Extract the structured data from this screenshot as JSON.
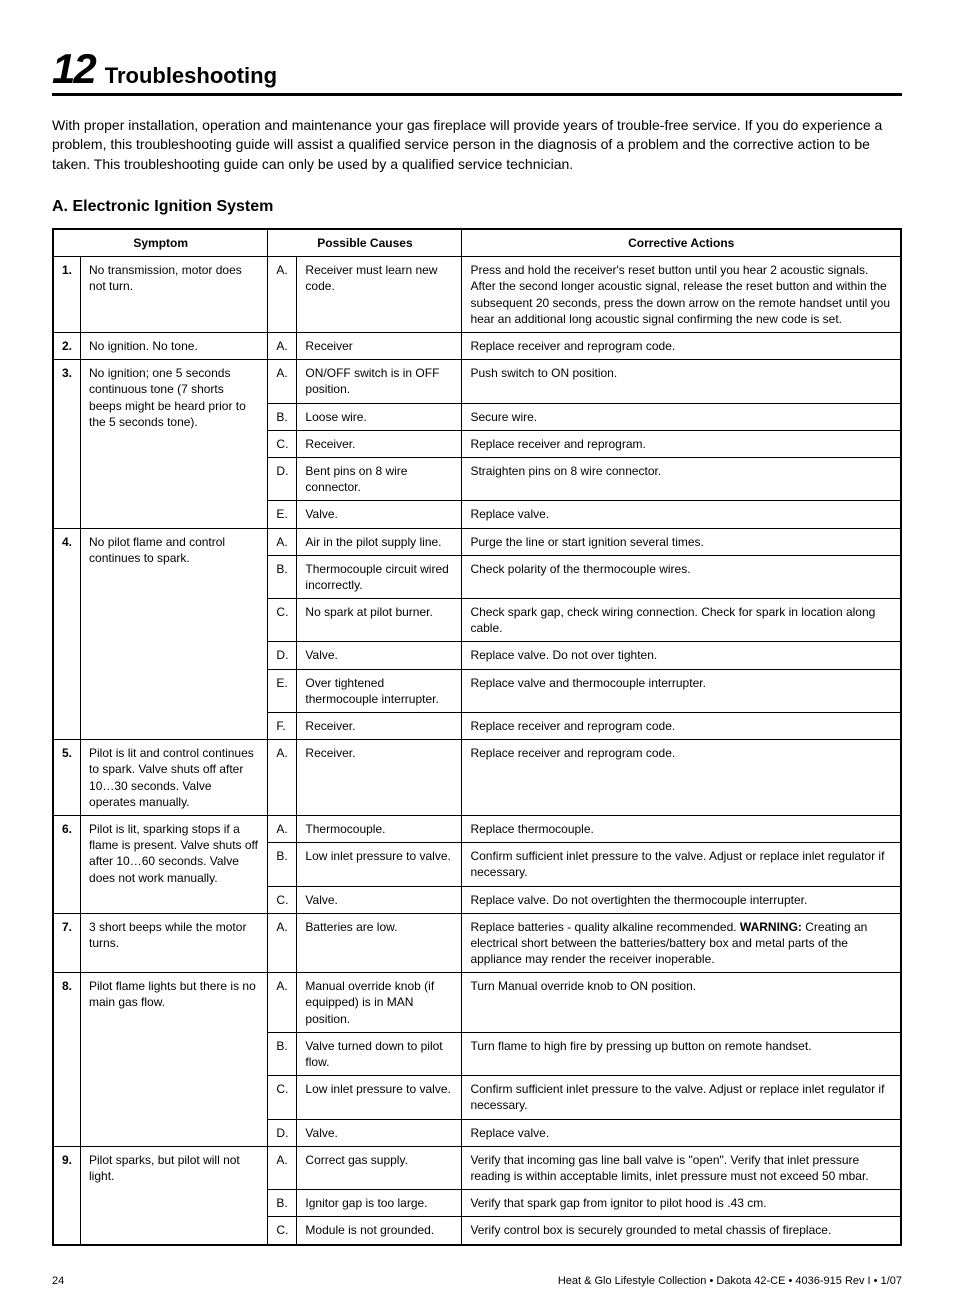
{
  "chapter": {
    "number": "12",
    "title": "Troubleshooting"
  },
  "intro": "With proper installation, operation and maintenance your gas fireplace will provide years of trouble-free service. If you do experience a problem, this troubleshooting guide will assist a qualified service person in the diagnosis of a problem and the corrective action to be taken. This troubleshooting guide can only be used by a qualified service technician.",
  "section_heading": "A. Electronic Ignition System",
  "table": {
    "headers": {
      "symptom": "Symptom",
      "causes": "Possible Causes",
      "actions": "Corrective Actions"
    },
    "rows": [
      {
        "num": "1.",
        "symptom": "No transmission, motor does not turn.",
        "causes": [
          {
            "letter": "A.",
            "cause": "Receiver must learn new code.",
            "action": "Press and hold the receiver's reset button until you hear 2 acoustic signals. After the second longer acoustic signal, release the reset button and within the subsequent 20 seconds, press the down arrow on the remote handset until you hear an additional long acoustic signal confirming the new code is set."
          }
        ]
      },
      {
        "num": "2.",
        "symptom": "No ignition. No tone.",
        "causes": [
          {
            "letter": "A.",
            "cause": "Receiver",
            "action": "Replace receiver and reprogram code."
          }
        ]
      },
      {
        "num": "3.",
        "symptom": "No ignition; one 5 seconds continuous tone (7 shorts beeps might be heard prior to the 5 seconds tone).",
        "causes": [
          {
            "letter": "A.",
            "cause": "ON/OFF switch is in OFF position.",
            "action": "Push switch to ON position."
          },
          {
            "letter": "B.",
            "cause": "Loose wire.",
            "action": "Secure wire."
          },
          {
            "letter": "C.",
            "cause": "Receiver.",
            "action": "Replace receiver and reprogram."
          },
          {
            "letter": "D.",
            "cause": "Bent pins on 8 wire connector.",
            "action": "Straighten pins on 8 wire connector."
          },
          {
            "letter": "E.",
            "cause": "Valve.",
            "action": "Replace valve."
          }
        ]
      },
      {
        "num": "4.",
        "symptom": "No pilot flame and control continues to spark.",
        "causes": [
          {
            "letter": "A.",
            "cause": "Air in the pilot supply line.",
            "action": "Purge the line or start ignition several times."
          },
          {
            "letter": "B.",
            "cause": "Thermocouple circuit wired incorrectly.",
            "action": "Check polarity of the thermocouple wires."
          },
          {
            "letter": "C.",
            "cause": "No spark at pilot burner.",
            "action": " Check spark gap, check wiring connection. Check for spark in location along cable."
          },
          {
            "letter": "D.",
            "cause": "Valve.",
            "action": "Replace valve. Do not over tighten."
          },
          {
            "letter": "E.",
            "cause": "Over tightened thermocouple interrupter.",
            "action": "Replace valve and thermocouple interrupter."
          },
          {
            "letter": "F.",
            "cause": "Receiver.",
            "action": "Replace receiver and reprogram code."
          }
        ]
      },
      {
        "num": "5.",
        "symptom": "Pilot is lit and control continues to spark. Valve shuts off after 10…30 seconds. Valve operates manually.",
        "causes": [
          {
            "letter": "A.",
            "cause": "Receiver.",
            "action": "Replace receiver and reprogram code."
          }
        ]
      },
      {
        "num": "6.",
        "symptom": "Pilot is lit, sparking stops if a flame is present. Valve shuts off after 10…60 seconds. Valve does not work manually.",
        "causes": [
          {
            "letter": "A.",
            "cause": "Thermocouple.",
            "action": "Replace thermocouple."
          },
          {
            "letter": "B.",
            "cause": "Low inlet pressure to valve.",
            "action": "Confirm sufficient inlet pressure to the valve. Adjust or replace inlet regulator if necessary."
          },
          {
            "letter": "C.",
            "cause": "Valve.",
            "action": "Replace valve. Do not overtighten the thermocouple interrupter."
          }
        ]
      },
      {
        "num": "7.",
        "symptom": "3 short beeps while the motor turns.",
        "causes": [
          {
            "letter": "A.",
            "cause": "Batteries are low.",
            "action_pre": "Replace batteries - quality alkaline recommended. ",
            "action_bold": "WARNING:",
            "action_post": " Creating an electrical short between the batteries/battery box and metal parts of the appliance may render the receiver inoperable."
          }
        ]
      },
      {
        "num": "8.",
        "symptom": "Pilot flame lights but there is no main gas flow.",
        "causes": [
          {
            "letter": "A.",
            "cause": "Manual override knob (if equipped) is in MAN position.",
            "action": "Turn Manual override knob to ON position."
          },
          {
            "letter": "B.",
            "cause": "Valve turned down to pilot flow.",
            "action": "Turn flame to high fire by pressing up button on remote handset."
          },
          {
            "letter": "C.",
            "cause": "Low inlet pressure to valve.",
            "action": "Confirm sufficient inlet pressure to the valve. Adjust or replace inlet regulator if necessary."
          },
          {
            "letter": "D.",
            "cause": "Valve.",
            "action": "Replace valve."
          }
        ]
      },
      {
        "num": "9.",
        "symptom": "Pilot sparks, but pilot will not light.",
        "causes": [
          {
            "letter": "A.",
            "cause": "Correct gas supply.",
            "action": "Verify that incoming gas line ball valve is \"open\". Verify that inlet pressure reading is within acceptable limits, inlet pressure must not exceed 50 mbar."
          },
          {
            "letter": "B.",
            "cause": "Ignitor gap is too large.",
            "action": "Verify that spark gap from ignitor to pilot hood is .43 cm."
          },
          {
            "letter": "C.",
            "cause": "Module is not grounded.",
            "action": "Verify control box is securely grounded to metal chassis of fireplace."
          }
        ]
      }
    ]
  },
  "footer": {
    "page": "24",
    "doc": "Heat & Glo Lifestyle Collection  •  Dakota 42-CE  •  4036-915 Rev I  •  1/07"
  }
}
